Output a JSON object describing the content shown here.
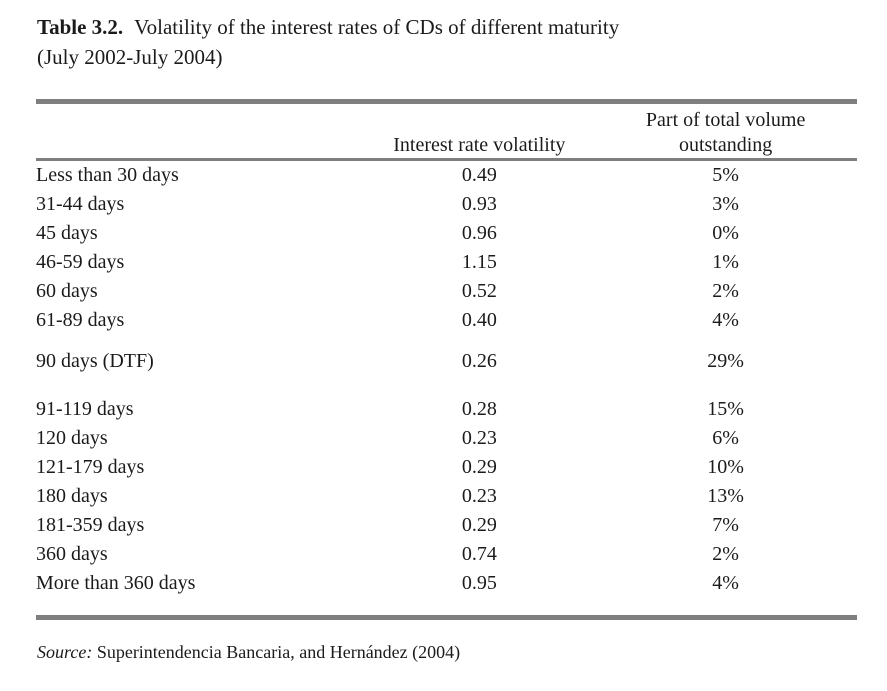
{
  "page": {
    "background_color": "#ffffff",
    "text_color": "#1b1b1b",
    "rule_color": "#7f7f7f"
  },
  "title": {
    "label": "Table 3.2.",
    "caption": "Volatility of the interest rates of CDs of different maturity",
    "caption_line2": "(July 2002-July 2004)"
  },
  "table": {
    "header": {
      "maturity": "",
      "volatility": "Interest rate volatility",
      "share_line1": "Part of total volume",
      "share_line2": "outstanding"
    },
    "rows": [
      {
        "maturity": "Less than 30 days",
        "volatility": "0.49",
        "share": "5%"
      },
      {
        "maturity": "31-44 days",
        "volatility": "0.93",
        "share": "3%"
      },
      {
        "maturity": "45 days",
        "volatility": "0.96",
        "share": "0%"
      },
      {
        "maturity": "46-59 days",
        "volatility": "1.15",
        "share": "1%"
      },
      {
        "maturity": "60 days",
        "volatility": "0.52",
        "share": "2%"
      },
      {
        "maturity": "61-89 days",
        "volatility": "0.40",
        "share": "4%"
      },
      {
        "maturity": "90 days (DTF)",
        "volatility": "0.26",
        "share": "29%"
      },
      {
        "maturity": "91-119 days",
        "volatility": "0.28",
        "share": "15%"
      },
      {
        "maturity": "120 days",
        "volatility": "0.23",
        "share": "6%"
      },
      {
        "maturity": "121-179 days",
        "volatility": "0.29",
        "share": "10%"
      },
      {
        "maturity": "180 days",
        "volatility": "0.23",
        "share": "13%"
      },
      {
        "maturity": "181-359 days",
        "volatility": "0.29",
        "share": "7%"
      },
      {
        "maturity": "360 days",
        "volatility": "0.74",
        "share": "2%"
      },
      {
        "maturity": "More than 360 days",
        "volatility": "0.95",
        "share": "4%"
      }
    ]
  },
  "source": {
    "label": "Source:",
    "text": "Superintendencia Bancaria, and Hernández (2004)"
  }
}
